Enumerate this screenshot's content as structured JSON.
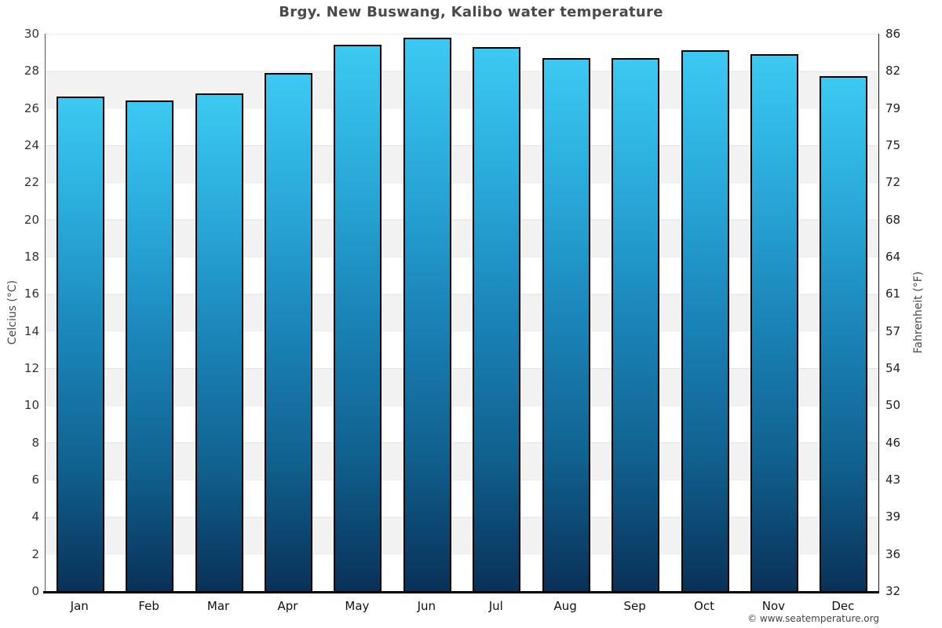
{
  "title": "Brgy. New Buswang, Kalibo water temperature",
  "copyright": "© www.seatemperature.org",
  "colors": {
    "bar_top": "#3cc9f2",
    "bar_bottom": "#093158",
    "bar_border": "#000000",
    "band_gray": "#f2f2f2",
    "title_text": "#4a4a4a",
    "axis_line_bottom": "#000000"
  },
  "chart_data": {
    "type": "bar",
    "title": "Brgy. New Buswang, Kalibo water temperature",
    "categories": [
      "Jan",
      "Feb",
      "Mar",
      "Apr",
      "May",
      "Jun",
      "Jul",
      "Aug",
      "Sep",
      "Oct",
      "Nov",
      "Dec"
    ],
    "values": [
      26.6,
      26.4,
      26.8,
      27.9,
      29.4,
      29.8,
      29.3,
      28.7,
      28.7,
      29.1,
      28.9,
      27.7
    ],
    "xlabel": "",
    "ylabel_left": "Celcius (°C)",
    "ylabel_right": "Fahrenheit (°F)",
    "ylim": [
      0,
      30
    ],
    "y_ticks_celsius": [
      30,
      28,
      26,
      24,
      22,
      20,
      18,
      16,
      14,
      12,
      10,
      8,
      6,
      4,
      2,
      0
    ],
    "y_ticks_fahrenheit": [
      86,
      82,
      79,
      75,
      72,
      68,
      64,
      61,
      57,
      54,
      50,
      46,
      43,
      39,
      36,
      32
    ],
    "grid": "alternating horizontal bands every 2°C",
    "legend": "none"
  }
}
